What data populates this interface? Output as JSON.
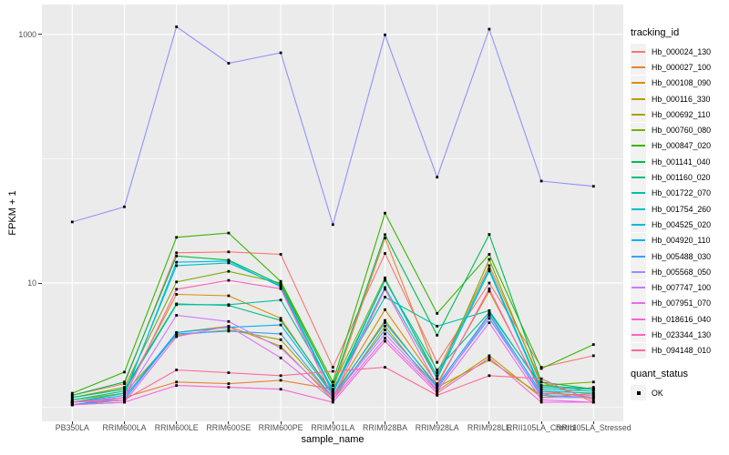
{
  "chart_data": {
    "type": "line",
    "title": "",
    "xlabel": "sample_name",
    "ylabel": "FPKM + 1",
    "y_scale": "log10",
    "panel_bg": "#EBEBEB",
    "grid_color": "#FFFFFF",
    "point_color": "#000000",
    "point_shape": "square",
    "ylim": [
      0.85,
      1700
    ],
    "y_ticks": [
      {
        "label": "1000",
        "value": 1000
      },
      {
        "label": "10",
        "value": 10
      }
    ],
    "y_gridlines_major": [
      10,
      1000
    ],
    "y_gridlines_minor": [
      1,
      100
    ],
    "categories": [
      "PB350LA",
      "RRIM600LA",
      "RRIM600LE",
      "RRIM600SE",
      "RRIM600PE",
      "RRIM901LA",
      "RRIM928BA",
      "RRIM928LA",
      "RRIM928LE",
      "RRII105LA_Control",
      "RRII105LA_Stressed"
    ],
    "legend": {
      "title": "tracking_id",
      "position": "right"
    },
    "legend2": {
      "title": "quant_status",
      "items": [
        {
          "label": "OK",
          "marker": "square",
          "color": "#000000"
        }
      ]
    },
    "series": [
      {
        "name": "Hb_000024_130",
        "color": "#F8766D",
        "values": [
          1.25,
          1.55,
          17.5,
          17.8,
          17.0,
          2.1,
          17.3,
          2.3,
          10.0,
          2.1,
          2.6
        ]
      },
      {
        "name": "Hb_000027_100",
        "color": "#EA8331",
        "values": [
          1.1,
          1.2,
          1.6,
          1.55,
          1.65,
          1.4,
          23.0,
          1.9,
          13.8,
          1.6,
          1.15
        ]
      },
      {
        "name": "Hb_000108_090",
        "color": "#D89000",
        "values": [
          1.1,
          1.3,
          8.1,
          7.9,
          5.2,
          1.25,
          6.1,
          1.55,
          8.6,
          1.35,
          1.2
        ]
      },
      {
        "name": "Hb_000116_330",
        "color": "#C09B00",
        "values": [
          1.05,
          1.15,
          4.0,
          4.5,
          3.1,
          1.15,
          4.5,
          1.35,
          2.6,
          1.2,
          1.3
        ]
      },
      {
        "name": "Hb_000692_110",
        "color": "#A3A500",
        "values": [
          1.15,
          1.3,
          3.8,
          4.2,
          3.5,
          1.2,
          5.0,
          1.45,
          2.4,
          1.25,
          1.45
        ]
      },
      {
        "name": "Hb_000760_080",
        "color": "#7CAE00",
        "values": [
          1.2,
          1.45,
          10.2,
          12.4,
          10.0,
          1.5,
          11.0,
          1.7,
          15.5,
          1.5,
          1.6
        ]
      },
      {
        "name": "Hb_000847_020",
        "color": "#39B600",
        "values": [
          1.3,
          1.92,
          23.3,
          25.2,
          10.3,
          1.6,
          36.5,
          5.7,
          17.0,
          2.05,
          3.2
        ]
      },
      {
        "name": "Hb_001141_040",
        "color": "#00BB4E",
        "values": [
          1.25,
          1.6,
          16.5,
          15.3,
          9.7,
          1.5,
          24.5,
          3.8,
          24.6,
          1.6,
          1.4
        ]
      },
      {
        "name": "Hb_001160_020",
        "color": "#00BF7D",
        "values": [
          1.2,
          1.4,
          6.8,
          6.6,
          5.0,
          1.3,
          10.5,
          2.0,
          5.8,
          1.5,
          1.4
        ]
      },
      {
        "name": "Hb_001722_070",
        "color": "#00C1A3",
        "values": [
          1.15,
          1.35,
          6.7,
          6.7,
          7.3,
          1.4,
          7.7,
          4.5,
          6.0,
          1.45,
          1.4
        ]
      },
      {
        "name": "Hb_001754_260",
        "color": "#00BFC4",
        "values": [
          1.1,
          1.3,
          13.8,
          14.5,
          9.5,
          1.35,
          10.6,
          1.8,
          13.0,
          1.4,
          1.35
        ]
      },
      {
        "name": "Hb_004525_020",
        "color": "#00BAE0",
        "values": [
          1.1,
          1.25,
          14.7,
          15.0,
          9.3,
          1.3,
          9.2,
          1.7,
          12.5,
          1.35,
          1.3
        ]
      },
      {
        "name": "Hb_004920_110",
        "color": "#00B0F6",
        "values": [
          1.05,
          1.2,
          4.0,
          4.4,
          4.6,
          1.25,
          4.8,
          1.5,
          5.6,
          1.3,
          1.25
        ]
      },
      {
        "name": "Hb_005488_030",
        "color": "#35A2FF",
        "values": [
          1.05,
          1.15,
          3.9,
          4.1,
          3.9,
          1.2,
          4.2,
          1.45,
          5.2,
          1.25,
          1.2
        ]
      },
      {
        "name": "Hb_005568_050",
        "color": "#9590FF",
        "values": [
          31.0,
          41.0,
          1150,
          585,
          710,
          29.5,
          990,
          71.0,
          1100,
          66.0,
          60.0
        ]
      },
      {
        "name": "Hb_007747_100",
        "color": "#C77CFF",
        "values": [
          1.1,
          1.2,
          5.5,
          4.9,
          3.0,
          1.2,
          3.9,
          1.4,
          5.5,
          1.2,
          1.2
        ]
      },
      {
        "name": "Hb_007951_070",
        "color": "#E76BF3",
        "values": [
          1.05,
          1.1,
          3.7,
          4.5,
          2.5,
          1.15,
          3.6,
          1.35,
          4.8,
          1.15,
          1.1
        ]
      },
      {
        "name": "Hb_018616_040",
        "color": "#FA62DB",
        "values": [
          1.05,
          1.1,
          1.5,
          1.45,
          1.4,
          1.1,
          3.4,
          1.3,
          2.5,
          1.1,
          1.1
        ]
      },
      {
        "name": "Hb_023344_130",
        "color": "#FF62BC",
        "values": [
          1.1,
          1.2,
          8.9,
          10.5,
          9.0,
          1.2,
          8.9,
          1.5,
          9.0,
          1.3,
          1.25
        ]
      },
      {
        "name": "Hb_094148_010",
        "color": "#FF6A98",
        "values": [
          1.1,
          1.15,
          2.0,
          1.9,
          1.8,
          1.95,
          2.1,
          1.25,
          1.8,
          1.7,
          1.1
        ]
      }
    ]
  }
}
